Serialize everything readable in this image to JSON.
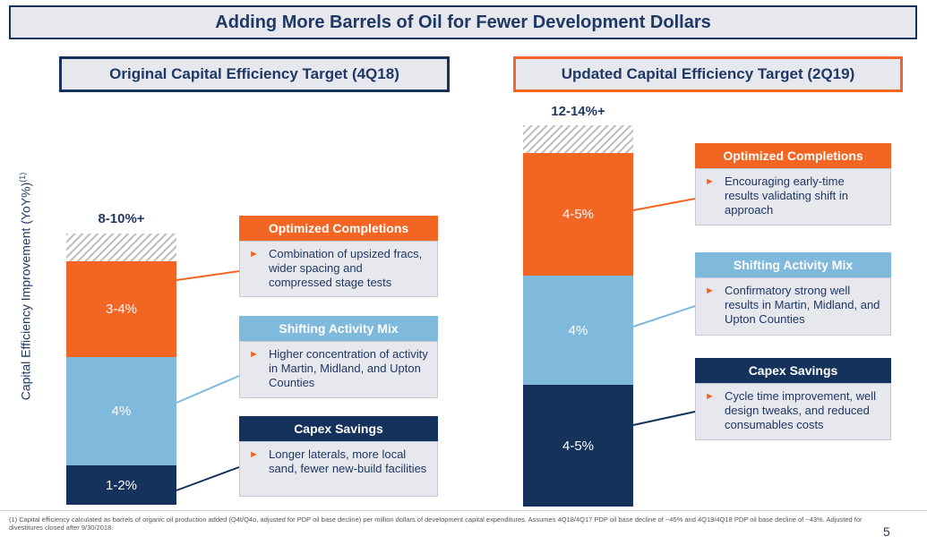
{
  "title": "Adding More Barrels of Oil for Fewer Development Dollars",
  "y_axis_label": "Capital Efficiency Improvement (YoY%)",
  "y_axis_sup": "(1)",
  "colors": {
    "navy": "#14325c",
    "light_blue": "#7fb9dc",
    "orange": "#f26522",
    "panel_bg": "#e6e8ee"
  },
  "left": {
    "header": "Original Capital Efficiency Target (4Q18)",
    "total_label": "8-10%+",
    "segments": {
      "capex": "1-2%",
      "activity": "4%",
      "completions": "3-4%"
    },
    "cards": {
      "completions": {
        "title": "Optimized Completions",
        "bullet": "Combination of upsized fracs, wider spacing and compressed stage tests"
      },
      "activity": {
        "title": "Shifting Activity Mix",
        "bullet": "Higher concentration of activity in Martin, Midland, and Upton Counties"
      },
      "capex": {
        "title": "Capex Savings",
        "bullet": "Longer laterals, more local sand, fewer new-build facilities"
      }
    }
  },
  "right": {
    "header": "Updated Capital Efficiency Target (2Q19)",
    "total_label": "12-14%+",
    "segments": {
      "capex": "4-5%",
      "activity": "4%",
      "completions": "4-5%"
    },
    "cards": {
      "completions": {
        "title": "Optimized Completions",
        "bullet": "Encouraging early-time results validating shift in approach"
      },
      "activity": {
        "title": "Shifting Activity Mix",
        "bullet": "Confirmatory strong well results in Martin, Midland, and Upton Counties"
      },
      "capex": {
        "title": "Capex Savings",
        "bullet": "Cycle time improvement, well design tweaks, and reduced consumables costs"
      }
    }
  },
  "footnote": "(1) Capital efficiency calculated as barrels of organic oil production added (Q4t/Q4o, adjusted for PDP oil base decline) per million dollars of development capital expenditures. Assumes 4Q18/4Q17 PDP oil base decline of ~45% and 4Q19/4Q18 PDP oil base decline of ~43%. Adjusted for divestitures closed after 9/30/2018.",
  "page_number": "5"
}
